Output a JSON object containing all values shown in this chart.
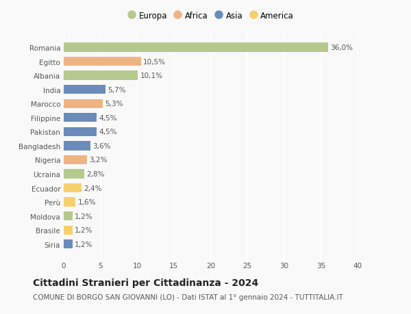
{
  "categories": [
    "Romania",
    "Egitto",
    "Albania",
    "India",
    "Marocco",
    "Filippine",
    "Pakistan",
    "Bangladesh",
    "Nigeria",
    "Ucraina",
    "Ecuador",
    "Perù",
    "Moldova",
    "Brasile",
    "Siria"
  ],
  "values": [
    36.0,
    10.5,
    10.1,
    5.7,
    5.3,
    4.5,
    4.5,
    3.6,
    3.2,
    2.8,
    2.4,
    1.6,
    1.2,
    1.2,
    1.2
  ],
  "labels": [
    "36,0%",
    "10,5%",
    "10,1%",
    "5,7%",
    "5,3%",
    "4,5%",
    "4,5%",
    "3,6%",
    "3,2%",
    "2,8%",
    "2,4%",
    "1,6%",
    "1,2%",
    "1,2%",
    "1,2%"
  ],
  "colors": [
    "#b5c98e",
    "#f0b482",
    "#b5c98e",
    "#6b8cba",
    "#f0b482",
    "#6b8cba",
    "#6b8cba",
    "#6b8cba",
    "#f0b482",
    "#b5c98e",
    "#f5d06b",
    "#f5d06b",
    "#b5c98e",
    "#f5d06b",
    "#6b8cba"
  ],
  "legend_labels": [
    "Europa",
    "Africa",
    "Asia",
    "America"
  ],
  "legend_colors": [
    "#b5c98e",
    "#f0b482",
    "#6b8cba",
    "#f5d06b"
  ],
  "title": "Cittadini Stranieri per Cittadinanza - 2024",
  "subtitle": "COMUNE DI BORGO SAN GIOVANNI (LO) - Dati ISTAT al 1° gennaio 2024 - TUTTITALIA.IT",
  "xlim": [
    0,
    40
  ],
  "xticks": [
    0,
    5,
    10,
    15,
    20,
    25,
    30,
    35,
    40
  ],
  "background_color": "#f9f9f9",
  "grid_color": "#ffffff",
  "bar_height": 0.65,
  "title_fontsize": 10,
  "subtitle_fontsize": 7.5,
  "label_fontsize": 7.5,
  "tick_fontsize": 7.5,
  "legend_fontsize": 8.5
}
